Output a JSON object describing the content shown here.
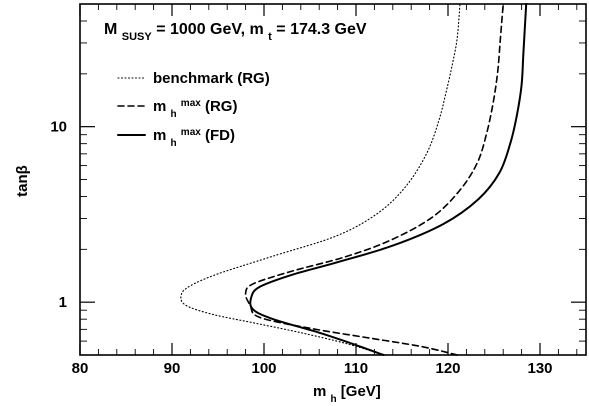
{
  "chart_data": {
    "type": "line",
    "title_parts": {
      "msusy_prefix": "M",
      "msusy_sub": "SUSY",
      "msusy_value": " = 1000 GeV, m",
      "mt_sub": "t",
      "mt_value": " = 174.3 GeV"
    },
    "xlabel": {
      "main": "m",
      "sub": "h",
      "unit": " [GeV]"
    },
    "ylabel": "tanβ",
    "xlim": [
      80,
      135
    ],
    "ylim": [
      0.5,
      50
    ],
    "yscale": "log",
    "x_ticks": [
      "80",
      "90",
      "100",
      "110",
      "120",
      "130"
    ],
    "y_ticks": [
      "1",
      "10"
    ],
    "grid": false,
    "legend_position": "upper-left",
    "series": [
      {
        "name": "benchmark (RG)",
        "label_main": "benchmark (RG)",
        "label_sup": "",
        "label_suffix": "",
        "style": "dotted",
        "x": [
          113.0,
          109.0,
          104.0,
          99.0,
          94.5,
          91.5,
          91.0,
          92.0,
          95.0,
          101.0,
          108.0,
          112.5,
          115.5,
          117.7,
          119.0,
          119.8,
          120.5,
          121.0,
          121.3
        ],
        "y": [
          0.5,
          0.58,
          0.67,
          0.76,
          0.85,
          0.96,
          1.1,
          1.24,
          1.45,
          1.83,
          2.4,
          3.25,
          4.63,
          7.07,
          10.8,
          15.8,
          23.0,
          32.0,
          50.0
        ]
      },
      {
        "name": "mhmax (RG)",
        "label_main": "m",
        "label_sub": "h",
        "label_sup": "max",
        "label_suffix": " (RG)",
        "style": "dashed",
        "x": [
          121.0,
          117.0,
          111.0,
          105.0,
          99.5,
          98.5,
          98.0,
          98.8,
          103.0,
          108.8,
          113.8,
          118.3,
          121.3,
          123.2,
          124.2,
          124.9,
          125.4,
          125.7,
          126.0
        ],
        "y": [
          0.5,
          0.56,
          0.63,
          0.71,
          0.82,
          0.96,
          1.12,
          1.27,
          1.5,
          1.81,
          2.26,
          3.05,
          4.35,
          6.25,
          9.16,
          13.6,
          20.5,
          32.0,
          50.0
        ]
      },
      {
        "name": "mhmax (FD)",
        "label_main": "m",
        "label_sub": "h",
        "label_sup": "max",
        "label_suffix": " (FD)",
        "style": "solid",
        "x": [
          113.0,
          110.0,
          106.0,
          101.0,
          98.8,
          98.6,
          99.5,
          103.0,
          108.0,
          114.0,
          119.5,
          123.3,
          125.6,
          126.8,
          127.5,
          128.0,
          128.2,
          128.5
        ],
        "y": [
          0.5,
          0.57,
          0.67,
          0.8,
          0.91,
          1.06,
          1.22,
          1.43,
          1.69,
          2.1,
          2.79,
          3.86,
          5.47,
          8.13,
          11.7,
          17.3,
          26.5,
          50.0
        ]
      }
    ]
  }
}
